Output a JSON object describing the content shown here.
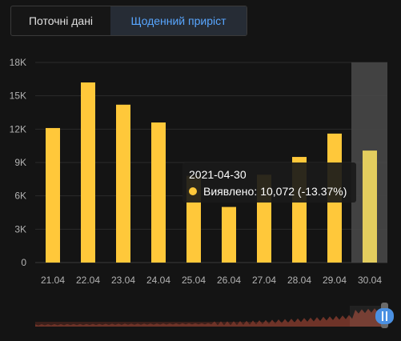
{
  "tabs": [
    {
      "label": "Поточні дані",
      "active": false
    },
    {
      "label": "Щоденний приріст",
      "active": true
    }
  ],
  "colors": {
    "bar": "#ffc83a",
    "bar_hover": "#e3cd5e",
    "tab_active_text": "#58a6ff",
    "navigator_fill": "#6e3328"
  },
  "chart_data": {
    "type": "bar",
    "categories": [
      "21.04",
      "22.04",
      "23.04",
      "24.04",
      "25.04",
      "26.04",
      "27.04",
      "28.04",
      "29.04",
      "30.04"
    ],
    "series": [
      {
        "name": "Виявлено",
        "values": [
          12100,
          16200,
          14200,
          12600,
          7800,
          5000,
          7900,
          9500,
          11600,
          10072
        ]
      }
    ],
    "y_ticks": [
      "0",
      "3K",
      "6K",
      "9K",
      "12K",
      "15K",
      "18K"
    ],
    "ylim": [
      0,
      18000
    ],
    "grid": true,
    "highlighted_index": 9,
    "tooltip": {
      "date": "2021-04-30",
      "label": "Виявлено:",
      "value": "10,072",
      "change": "-13.37%"
    }
  }
}
